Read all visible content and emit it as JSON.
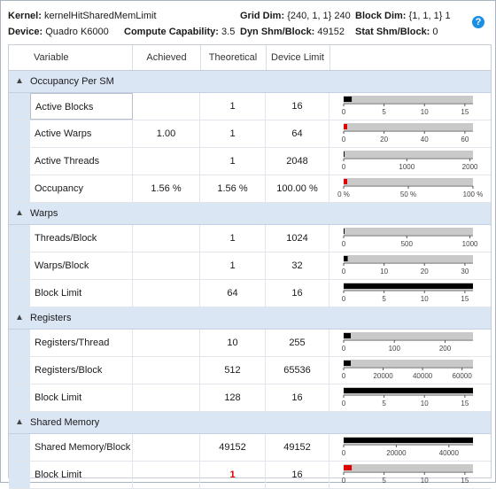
{
  "header": {
    "kernel_label": "Kernel:",
    "kernel_value": "kernelHitSharedMemLimit",
    "grid_label": "Grid Dim:",
    "grid_value": "{240, 1, 1} 240",
    "block_label": "Block Dim:",
    "block_value": "{1, 1, 1} 1",
    "device_label": "Device:",
    "device_value": "Quadro K6000",
    "cc_label": "Compute Capability:",
    "cc_value": "3.5",
    "dyn_label": "Dyn Shm/Block:",
    "dyn_value": "49152",
    "stat_label": "Stat Shm/Block:",
    "stat_value": "0",
    "help_icon": "?"
  },
  "columns": {
    "variable": "Variable",
    "achieved": "Achieved",
    "theoretical": "Theoretical",
    "device_limit": "Device Limit"
  },
  "colors": {
    "bar_bg": "#c9c9c9",
    "bar_black": "#000000",
    "bar_red": "#e00000",
    "group_bg": "#dbe6f5"
  },
  "groups": [
    {
      "label": "Occupancy Per SM",
      "rows": [
        {
          "name": "Active Blocks",
          "achieved": "",
          "theoretical": "1",
          "limit": "16",
          "selected": true,
          "bar": {
            "max": 16,
            "ticks": [
              "0",
              "5",
              "10",
              "15"
            ],
            "tickvals": [
              0,
              5,
              10,
              15
            ],
            "value": 1,
            "color": "black"
          }
        },
        {
          "name": "Active Warps",
          "achieved": "1.00",
          "theoretical": "1",
          "limit": "64",
          "bar": {
            "max": 64,
            "ticks": [
              "0",
              "20",
              "40",
              "60"
            ],
            "tickvals": [
              0,
              20,
              40,
              60
            ],
            "value": 1,
            "color": "red"
          }
        },
        {
          "name": "Active Threads",
          "achieved": "",
          "theoretical": "1",
          "limit": "2048",
          "bar": {
            "max": 2048,
            "ticks": [
              "0",
              "1000",
              "2000"
            ],
            "tickvals": [
              0,
              1000,
              2000
            ],
            "value": 1,
            "color": "black"
          }
        },
        {
          "name": "Occupancy",
          "achieved": "1.56 %",
          "theoretical": "1.56 %",
          "limit": "100.00 %",
          "bar": {
            "max": 100,
            "ticks": [
              "0 %",
              "50 %",
              "100 %"
            ],
            "tickvals": [
              0,
              50,
              100
            ],
            "value": 1.56,
            "color": "red"
          }
        }
      ]
    },
    {
      "label": "Warps",
      "rows": [
        {
          "name": "Threads/Block",
          "achieved": "",
          "theoretical": "1",
          "limit": "1024",
          "bar": {
            "max": 1024,
            "ticks": [
              "0",
              "500",
              "1000"
            ],
            "tickvals": [
              0,
              500,
              1000
            ],
            "value": 1,
            "color": "black"
          }
        },
        {
          "name": "Warps/Block",
          "achieved": "",
          "theoretical": "1",
          "limit": "32",
          "bar": {
            "max": 32,
            "ticks": [
              "0",
              "10",
              "20",
              "30"
            ],
            "tickvals": [
              0,
              10,
              20,
              30
            ],
            "value": 1,
            "color": "black"
          }
        },
        {
          "name": "Block Limit",
          "achieved": "",
          "theoretical": "64",
          "limit": "16",
          "bar": {
            "max": 16,
            "ticks": [
              "0",
              "5",
              "10",
              "15"
            ],
            "tickvals": [
              0,
              5,
              10,
              15
            ],
            "value": 16,
            "color": "black"
          }
        }
      ]
    },
    {
      "label": "Registers",
      "rows": [
        {
          "name": "Registers/Thread",
          "achieved": "",
          "theoretical": "10",
          "limit": "255",
          "bar": {
            "max": 255,
            "ticks": [
              "0",
              "100",
              "200"
            ],
            "tickvals": [
              0,
              100,
              200
            ],
            "value": 10,
            "color": "black"
          }
        },
        {
          "name": "Registers/Block",
          "achieved": "",
          "theoretical": "512",
          "limit": "65536",
          "bar": {
            "max": 65536,
            "ticks": [
              "0",
              "20000",
              "40000",
              "60000"
            ],
            "tickvals": [
              0,
              20000,
              40000,
              60000
            ],
            "value": 512,
            "color": "black"
          }
        },
        {
          "name": "Block Limit",
          "achieved": "",
          "theoretical": "128",
          "limit": "16",
          "bar": {
            "max": 16,
            "ticks": [
              "0",
              "5",
              "10",
              "15"
            ],
            "tickvals": [
              0,
              5,
              10,
              15
            ],
            "value": 16,
            "color": "black"
          }
        }
      ]
    },
    {
      "label": "Shared Memory",
      "rows": [
        {
          "name": "Shared Memory/Block",
          "achieved": "",
          "theoretical": "49152",
          "limit": "49152",
          "bar": {
            "max": 49152,
            "ticks": [
              "0",
              "20000",
              "40000"
            ],
            "tickvals": [
              0,
              20000,
              40000
            ],
            "value": 49152,
            "color": "black"
          }
        },
        {
          "name": "Block Limit",
          "achieved": "",
          "theoretical": "1",
          "limit": "16",
          "theo_red": true,
          "bar": {
            "max": 16,
            "ticks": [
              "0",
              "5",
              "10",
              "15"
            ],
            "tickvals": [
              0,
              5,
              10,
              15
            ],
            "value": 1,
            "color": "red"
          }
        }
      ]
    }
  ]
}
